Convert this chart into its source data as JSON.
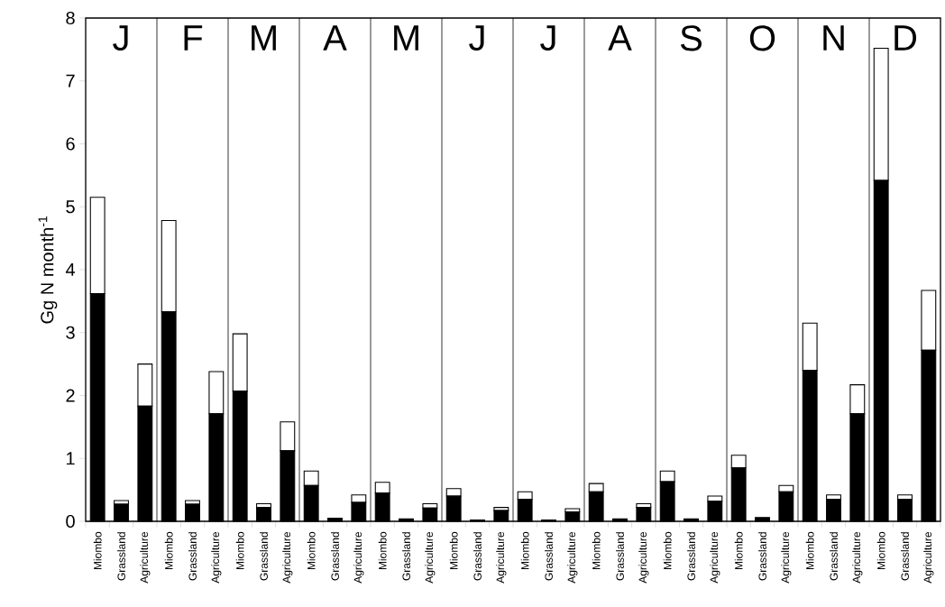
{
  "chart_data": {
    "type": "bar",
    "stacked": true,
    "ylabel": "Gg N month$^{-1}$",
    "categories": [
      "Miombo",
      "Grassland",
      "Agriculture",
      "Miombo",
      "Grassland",
      "Agriculture",
      "Miombo",
      "Grassland",
      "Agriculture",
      "Miombo",
      "Grassland",
      "Agriculture",
      "Miombo",
      "Grassland",
      "Agriculture",
      "Miombo",
      "Grassland",
      "Agriculture",
      "Miombo",
      "Grassland",
      "Agriculture",
      "Miombo",
      "Grassland",
      "Agriculture",
      "Miombo",
      "Grassland",
      "Agriculture",
      "Miombo",
      "Grassland",
      "Agriculture",
      "Miombo",
      "Grassland",
      "Agriculture",
      "Miombo",
      "Grassland",
      "Agriculture"
    ],
    "series": [
      {
        "color": "#000000",
        "values": [
          3.62,
          0.27,
          1.83,
          3.33,
          0.27,
          1.71,
          2.07,
          0.22,
          1.12,
          0.57,
          0.05,
          0.3,
          0.45,
          0.04,
          0.21,
          0.4,
          0.02,
          0.17,
          0.35,
          0.02,
          0.15,
          0.47,
          0.04,
          0.22,
          0.63,
          0.04,
          0.32,
          0.85,
          0.06,
          0.47,
          2.4,
          0.35,
          1.71,
          5.42,
          0.35,
          2.72
        ]
      },
      {
        "color": "#ffffff",
        "values": [
          1.53,
          0.06,
          0.67,
          1.45,
          0.06,
          0.67,
          0.91,
          0.06,
          0.46,
          0.23,
          null,
          0.12,
          0.17,
          null,
          0.07,
          0.12,
          null,
          0.05,
          0.12,
          null,
          0.05,
          0.13,
          null,
          0.06,
          0.17,
          null,
          0.08,
          0.2,
          null,
          0.1,
          0.75,
          0.07,
          0.46,
          2.1,
          0.07,
          0.95
        ]
      }
    ],
    "ylim": [
      0,
      8
    ],
    "yticks": [
      0,
      1,
      2,
      3,
      4,
      5,
      6,
      7,
      8
    ],
    "annotations": [
      "J",
      "F",
      "M",
      "A",
      "M",
      "J",
      "J",
      "A",
      "S",
      "O",
      "N",
      "D"
    ]
  }
}
